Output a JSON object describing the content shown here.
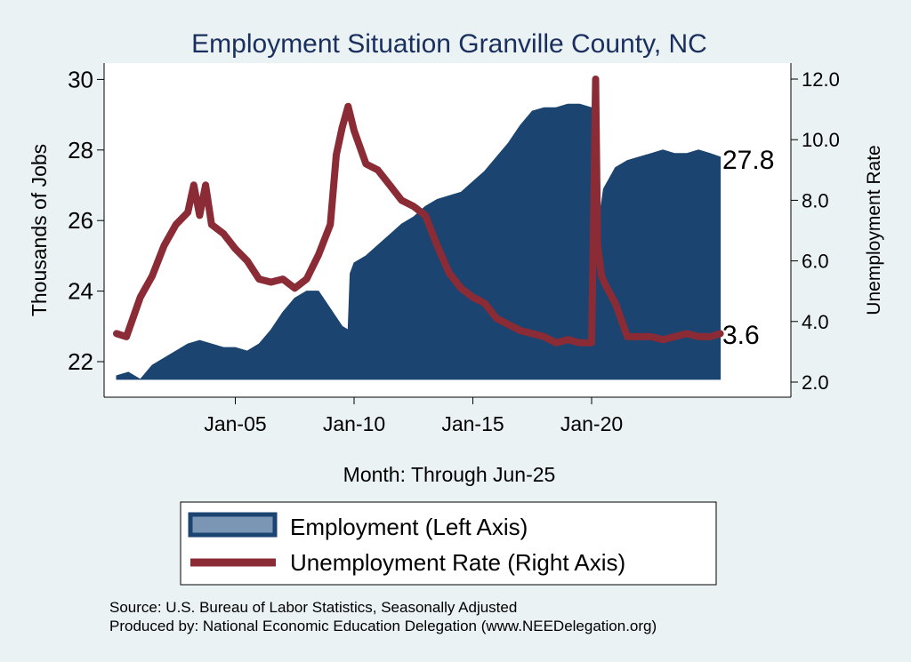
{
  "colors": {
    "background": "#eaf2f3",
    "plot_area": "#ffffff",
    "title": "#1a2f5e",
    "employment": "#1b4470",
    "unemployment": "#8a2b35",
    "legend_swatch_fill": "#7a96b4"
  },
  "source_line": "Source: U.S. Bureau of Labor Statistics, Seasonally Adjusted",
  "produced_line": "Produced by: National Economic Education Delegation (www.NEEDelegation.org)",
  "chart_data": {
    "type": "area",
    "title": "Employment Situation Granville  County, NC",
    "xlabel": "Month: Through Jun-25",
    "ylabel_left": "Thousands of Jobs",
    "ylabel_right": "Unemployment Rate",
    "x_ticks": [
      "Jan-05",
      "Jan-10",
      "Jan-15",
      "Jan-20"
    ],
    "x_tick_values": [
      "2005-01",
      "2010-01",
      "2015-01",
      "2020-01"
    ],
    "x_range": [
      "2000-01",
      "2025-06"
    ],
    "y_left_ticks": [
      "22",
      "24",
      "26",
      "28",
      "30"
    ],
    "y_left_range": [
      21.5,
      30.0
    ],
    "y_right_ticks": [
      "2.0",
      "4.0",
      "6.0",
      "8.0",
      "10.0",
      "12.0"
    ],
    "y_right_range": [
      1.95,
      12.0
    ],
    "grid": false,
    "legend_placement": "bottom",
    "end_labels": {
      "employment": "27.8",
      "unemployment": "3.6"
    },
    "series": [
      {
        "name": "Employment (Left Axis)",
        "axis": "left",
        "type": "area",
        "x": [
          "2000-01",
          "2000-07",
          "2001-01",
          "2001-07",
          "2002-01",
          "2002-07",
          "2003-01",
          "2003-07",
          "2004-01",
          "2004-07",
          "2005-01",
          "2005-07",
          "2006-01",
          "2006-07",
          "2007-01",
          "2007-07",
          "2008-01",
          "2008-07",
          "2009-01",
          "2009-07",
          "2009-10",
          "2009-11",
          "2010-01",
          "2010-07",
          "2011-01",
          "2011-07",
          "2012-01",
          "2012-07",
          "2013-01",
          "2013-07",
          "2014-01",
          "2014-07",
          "2015-01",
          "2015-07",
          "2016-01",
          "2016-07",
          "2017-01",
          "2017-07",
          "2018-01",
          "2018-07",
          "2019-01",
          "2019-07",
          "2020-01",
          "2020-03",
          "2020-05",
          "2020-07",
          "2021-01",
          "2021-07",
          "2022-01",
          "2022-07",
          "2023-01",
          "2023-07",
          "2024-01",
          "2024-07",
          "2025-01",
          "2025-06"
        ],
        "values": [
          21.6,
          21.7,
          21.5,
          21.9,
          22.1,
          22.3,
          22.5,
          22.6,
          22.5,
          22.4,
          22.4,
          22.3,
          22.5,
          22.9,
          23.4,
          23.8,
          24.0,
          24.0,
          23.5,
          23.0,
          22.9,
          24.5,
          24.8,
          25.0,
          25.3,
          25.6,
          25.9,
          26.1,
          26.4,
          26.6,
          26.7,
          26.8,
          27.1,
          27.4,
          27.8,
          28.2,
          28.7,
          29.1,
          29.2,
          29.2,
          29.3,
          29.3,
          29.2,
          28.2,
          26.1,
          26.9,
          27.5,
          27.7,
          27.8,
          27.9,
          28.0,
          27.9,
          27.9,
          28.0,
          27.9,
          27.8
        ]
      },
      {
        "name": "Unemployment Rate (Right Axis)",
        "axis": "right",
        "type": "line",
        "x": [
          "2000-01",
          "2000-06",
          "2001-01",
          "2001-07",
          "2002-01",
          "2002-07",
          "2003-01",
          "2003-04",
          "2003-07",
          "2003-10",
          "2004-01",
          "2004-07",
          "2005-01",
          "2005-07",
          "2006-01",
          "2006-07",
          "2007-01",
          "2007-07",
          "2008-01",
          "2008-07",
          "2009-01",
          "2009-04",
          "2009-07",
          "2009-10",
          "2010-01",
          "2010-07",
          "2011-01",
          "2011-07",
          "2012-01",
          "2012-07",
          "2013-01",
          "2013-07",
          "2014-01",
          "2014-07",
          "2015-01",
          "2015-07",
          "2016-01",
          "2016-07",
          "2017-01",
          "2017-07",
          "2018-01",
          "2018-07",
          "2019-01",
          "2019-07",
          "2020-01",
          "2020-03",
          "2020-04",
          "2020-06",
          "2020-08",
          "2021-01",
          "2021-07",
          "2022-01",
          "2022-07",
          "2023-01",
          "2023-07",
          "2024-01",
          "2024-07",
          "2025-01",
          "2025-06"
        ],
        "values": [
          3.6,
          3.5,
          4.8,
          5.5,
          6.5,
          7.2,
          7.6,
          8.5,
          7.5,
          8.5,
          7.2,
          6.9,
          6.4,
          6.0,
          5.4,
          5.3,
          5.4,
          5.1,
          5.4,
          6.2,
          7.2,
          9.5,
          10.4,
          11.1,
          10.3,
          9.2,
          9.0,
          8.5,
          8.0,
          7.8,
          7.5,
          6.5,
          5.6,
          5.1,
          4.8,
          4.6,
          4.1,
          3.9,
          3.7,
          3.6,
          3.5,
          3.3,
          3.4,
          3.3,
          3.3,
          12.0,
          6.5,
          5.5,
          5.2,
          4.6,
          3.5,
          3.5,
          3.5,
          3.4,
          3.5,
          3.6,
          3.5,
          3.5,
          3.6
        ]
      }
    ]
  }
}
